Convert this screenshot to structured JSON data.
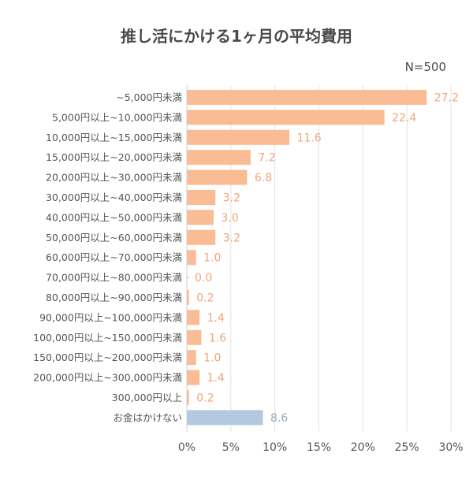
{
  "header": {
    "title": "推し活にかける1ヶ月の平均費用",
    "sample_size": "N=500"
  },
  "chart_data": {
    "type": "bar",
    "orientation": "horizontal",
    "title": "推し活にかける1ヶ月の平均費用",
    "annotation": "N=500",
    "xlabel": "",
    "ylabel": "",
    "xlim": [
      0,
      30
    ],
    "x_ticks": [
      "0%",
      "5%",
      "10%",
      "15%",
      "20%",
      "25%",
      "30%"
    ],
    "x_tick_values": [
      0,
      5,
      10,
      15,
      20,
      25,
      30
    ],
    "grid": true,
    "categories": [
      "~5,000円未満",
      "5,000円以上~10,000円未満",
      "10,000円以上~15,000円未満",
      "15,000円以上~20,000円未満",
      "20,000円以上~30,000円未満",
      "30,000円以上~40,000円未満",
      "40,000円以上~50,000円未満",
      "50,000円以上~60,000円未満",
      "60,000円以上~70,000円未満",
      "70,000円以上~80,000円未満",
      "80,000円以上~90,000円未満",
      "90,000円以上~100,000円未満",
      "100,000円以上~150,000円未満",
      "150,000円以上~200,000円未満",
      "200,000円以上~300,000円未満",
      "300,000円以上",
      "お金はかけない"
    ],
    "values": [
      27.2,
      22.4,
      11.6,
      7.2,
      6.8,
      3.2,
      3.0,
      3.2,
      1.0,
      0.0,
      0.2,
      1.4,
      1.6,
      1.0,
      1.4,
      0.2,
      8.6
    ],
    "value_labels": [
      "27.2",
      "22.4",
      "11.6",
      "7.2",
      "6.8",
      "3.2",
      "3.0",
      "3.2",
      "1.0",
      "0.0",
      "0.2",
      "1.4",
      "1.6",
      "1.0",
      "1.4",
      "0.2",
      "8.6"
    ],
    "colors": {
      "spend": "#f9bc94",
      "no_spend": "#b3c9e0",
      "spend_label": "#eea57a",
      "no_spend_label": "#9aaab8",
      "grid": "#e2e2e2",
      "axis": "#cfcfcf"
    },
    "highlight_index": 16
  }
}
